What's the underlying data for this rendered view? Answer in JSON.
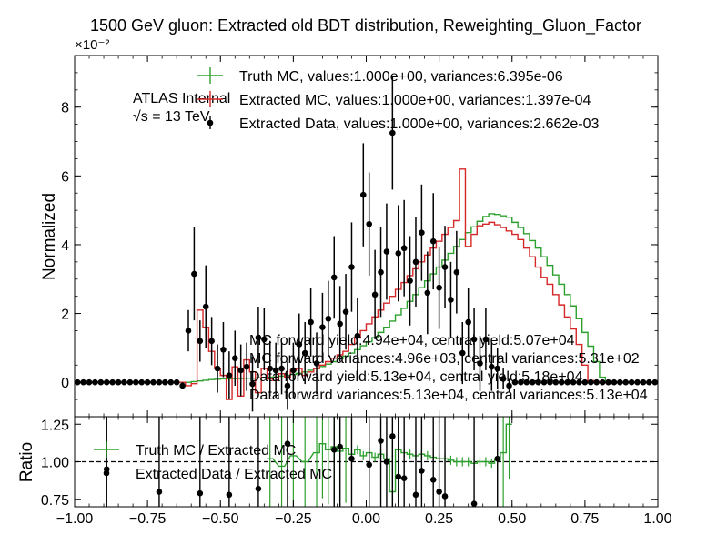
{
  "chart_data": {
    "type": "line",
    "title": "1500 GeV gluon: Extracted old BDT distribution, Reweighting_Gluon_Factor",
    "multiplier": "×10⁻²",
    "experiment": {
      "label": "ATLAS Internal",
      "energy": "√s = 13 TeV"
    },
    "xlim": [
      -1.0,
      1.0
    ],
    "xticks": [
      "−1.00",
      "−0.75",
      "−0.50",
      "−0.25",
      "0.00",
      "0.25",
      "0.50",
      "0.75",
      "1.00"
    ],
    "main": {
      "ylabel": "Normalized",
      "ylim": [
        -0.01,
        0.095
      ],
      "yticks": [
        {
          "value": 0,
          "label": "0"
        },
        {
          "value": 0.02,
          "label": "2"
        },
        {
          "value": 0.04,
          "label": "4"
        },
        {
          "value": 0.06,
          "label": "6"
        },
        {
          "value": 0.08,
          "label": "8"
        }
      ],
      "legend": [
        {
          "label": "Truth MC, values:1.000e+00, variances:6.395e-06",
          "color": "#2ca02c",
          "style": "errorbar-line"
        },
        {
          "label": "Extracted MC, values:1.000e+00, variances:1.397e-04",
          "color": "#d62728",
          "style": "errorbar-line"
        },
        {
          "label": "Extracted Data, values:1.000e+00, variances:2.662e-03",
          "color": "#000000",
          "style": "point"
        }
      ],
      "annotations": [
        "MC forward yield:4.94e+04, central yield:5.07e+04",
        "MC forward variances:4.96e+03, central variances:5.31e+02",
        "Data forward yield:5.13e+04, central yield:5.18e+04",
        "Data forward variances:5.13e+04, central variances:5.13e+04"
      ],
      "bin_edges_start": -1.0,
      "bin_width": 0.02,
      "truth_mc": [
        0,
        0,
        0,
        0,
        0,
        0,
        0,
        0,
        0,
        0,
        0,
        0,
        0,
        0,
        0,
        0,
        0,
        0,
        0,
        0,
        0.0002,
        0.0004,
        0.0006,
        0.0008,
        0.0009,
        0.001,
        0.001,
        0.0011,
        0.0011,
        0.0012,
        0.0012,
        0.0013,
        0.0014,
        0.0015,
        0.0016,
        0.0018,
        0.002,
        0.0023,
        0.0026,
        0.003,
        0.0035,
        0.004,
        0.0046,
        0.0053,
        0.006,
        0.0068,
        0.0076,
        0.0085,
        0.0095,
        0.0106,
        0.0118,
        0.013,
        0.0145,
        0.016,
        0.0178,
        0.0196,
        0.0215,
        0.0235,
        0.0255,
        0.0275,
        0.0295,
        0.0315,
        0.0335,
        0.0355,
        0.0375,
        0.0395,
        0.0415,
        0.0435,
        0.0452,
        0.0468,
        0.0482,
        0.049,
        0.0488,
        0.0484,
        0.048,
        0.0465,
        0.045,
        0.0432,
        0.0412,
        0.039,
        0.0365,
        0.034,
        0.0312,
        0.0285,
        0.0255,
        0.0222,
        0.0185,
        0.0145,
        0.0105,
        0.006,
        0.0015,
        0,
        0,
        0,
        0,
        0,
        0,
        0,
        0,
        0
      ],
      "extracted_mc": [
        0,
        0,
        0,
        0,
        0,
        0,
        0,
        0,
        0,
        0,
        0,
        0,
        0,
        0,
        0,
        0,
        0,
        0,
        0,
        -0.001,
        -0.0004,
        0.021,
        0.016,
        0.009,
        0.004,
        0.002,
        -0.005,
        0.0045,
        -0.004,
        0.0065,
        0.003,
        -0.003,
        0.004,
        0.001,
        0.0005,
        0.0025,
        0.0015,
        0.0035,
        0.004,
        0.002,
        0.003,
        0.004,
        0.005,
        0.006,
        0.007,
        0.008,
        0.009,
        0.011,
        0.013,
        0.015,
        0.017,
        0.019,
        0.021,
        0.023,
        0.025,
        0.027,
        0.029,
        0.031,
        0.033,
        0.035,
        0.037,
        0.039,
        0.041,
        0.043,
        0.045,
        0.047,
        0.062,
        0.0395,
        0.043,
        0.0455,
        0.046,
        0.0465,
        0.0458,
        0.045,
        0.044,
        0.043,
        0.0415,
        0.039,
        0.0365,
        0.0335,
        0.0305,
        0.0285,
        0.0255,
        0.0225,
        0.019,
        0.0155,
        0.011,
        0.005,
        0.0005,
        0,
        0,
        0,
        0,
        0,
        0,
        0,
        0,
        0,
        0,
        0
      ],
      "data_points": [
        {
          "x": -0.99,
          "y": 0,
          "err": 0.0005
        },
        {
          "x": -0.97,
          "y": 0,
          "err": 0.0005
        },
        {
          "x": -0.95,
          "y": 0,
          "err": 0.0005
        },
        {
          "x": -0.93,
          "y": 0,
          "err": 0.0005
        },
        {
          "x": -0.91,
          "y": 0,
          "err": 0.0005
        },
        {
          "x": -0.89,
          "y": 0,
          "err": 0.0005
        },
        {
          "x": -0.87,
          "y": 0,
          "err": 0.0005
        },
        {
          "x": -0.85,
          "y": 0,
          "err": 0.0005
        },
        {
          "x": -0.83,
          "y": 0,
          "err": 0.0005
        },
        {
          "x": -0.81,
          "y": 0,
          "err": 0.0005
        },
        {
          "x": -0.79,
          "y": 0,
          "err": 0.0005
        },
        {
          "x": -0.77,
          "y": 0,
          "err": 0.0005
        },
        {
          "x": -0.75,
          "y": 0,
          "err": 0.0005
        },
        {
          "x": -0.73,
          "y": 0,
          "err": 0.0005
        },
        {
          "x": -0.71,
          "y": 0,
          "err": 0.0005
        },
        {
          "x": -0.69,
          "y": 0,
          "err": 0.0005
        },
        {
          "x": -0.67,
          "y": 0,
          "err": 0.0005
        },
        {
          "x": -0.65,
          "y": 0,
          "err": 0.0005
        },
        {
          "x": -0.63,
          "y": -0.001,
          "err": 0.001
        },
        {
          "x": -0.61,
          "y": 0.015,
          "err": 0.006
        },
        {
          "x": -0.59,
          "y": 0.0315,
          "err": 0.0135
        },
        {
          "x": -0.57,
          "y": 0.012,
          "err": 0.006
        },
        {
          "x": -0.55,
          "y": 0.022,
          "err": 0.012
        },
        {
          "x": -0.53,
          "y": 0.012,
          "err": 0.007
        },
        {
          "x": -0.51,
          "y": 0.004,
          "err": 0.007
        },
        {
          "x": -0.49,
          "y": 0.0095,
          "err": 0.008
        },
        {
          "x": -0.47,
          "y": 0.002,
          "err": 0.007
        },
        {
          "x": -0.45,
          "y": 0.007,
          "err": 0.008
        },
        {
          "x": -0.43,
          "y": 0.0035,
          "err": 0.0075
        },
        {
          "x": -0.41,
          "y": 0.0045,
          "err": 0.007
        },
        {
          "x": -0.39,
          "y": -0.0005,
          "err": 0.008
        },
        {
          "x": -0.37,
          "y": 0.013,
          "err": 0.009
        },
        {
          "x": -0.35,
          "y": 0.0125,
          "err": 0.009
        },
        {
          "x": -0.33,
          "y": 0.004,
          "err": 0.008
        },
        {
          "x": -0.31,
          "y": 0.0035,
          "err": 0.008
        },
        {
          "x": -0.29,
          "y": 0.004,
          "err": 0.0075
        },
        {
          "x": -0.27,
          "y": -0.001,
          "err": 0.007
        },
        {
          "x": -0.25,
          "y": 0.0035,
          "err": 0.008
        },
        {
          "x": -0.23,
          "y": 0.011,
          "err": 0.009
        },
        {
          "x": -0.21,
          "y": 0.0085,
          "err": 0.009
        },
        {
          "x": -0.19,
          "y": 0.0175,
          "err": 0.01
        },
        {
          "x": -0.17,
          "y": 0.0055,
          "err": 0.009
        },
        {
          "x": -0.15,
          "y": 0.016,
          "err": 0.01
        },
        {
          "x": -0.13,
          "y": 0.0185,
          "err": 0.011
        },
        {
          "x": -0.11,
          "y": 0.0305,
          "err": 0.012
        },
        {
          "x": -0.09,
          "y": 0.017,
          "err": 0.011
        },
        {
          "x": -0.07,
          "y": 0.0205,
          "err": 0.011
        },
        {
          "x": -0.05,
          "y": 0.0335,
          "err": 0.013
        },
        {
          "x": -0.03,
          "y": 0.0135,
          "err": 0.011
        },
        {
          "x": -0.01,
          "y": 0.0545,
          "err": 0.015
        },
        {
          "x": 0.01,
          "y": 0.046,
          "err": 0.015
        },
        {
          "x": 0.03,
          "y": 0.0255,
          "err": 0.013
        },
        {
          "x": 0.05,
          "y": 0.032,
          "err": 0.013
        },
        {
          "x": 0.07,
          "y": 0.038,
          "err": 0.014
        },
        {
          "x": 0.09,
          "y": 0.0725,
          "err": 0.0165
        },
        {
          "x": 0.11,
          "y": 0.0375,
          "err": 0.014
        },
        {
          "x": 0.13,
          "y": 0.039,
          "err": 0.014
        },
        {
          "x": 0.15,
          "y": 0.0295,
          "err": 0.013
        },
        {
          "x": 0.17,
          "y": 0.035,
          "err": 0.013
        },
        {
          "x": 0.19,
          "y": 0.0435,
          "err": 0.014
        },
        {
          "x": 0.21,
          "y": 0.026,
          "err": 0.012
        },
        {
          "x": 0.23,
          "y": 0.041,
          "err": 0.014
        },
        {
          "x": 0.25,
          "y": 0.0275,
          "err": 0.012
        },
        {
          "x": 0.27,
          "y": 0.0335,
          "err": 0.012
        },
        {
          "x": 0.29,
          "y": 0.024,
          "err": 0.011
        },
        {
          "x": 0.31,
          "y": 0.032,
          "err": 0.012
        },
        {
          "x": 0.33,
          "y": 0.0085,
          "err": 0.009
        },
        {
          "x": 0.35,
          "y": 0.0175,
          "err": 0.01
        },
        {
          "x": 0.37,
          "y": 0.0125,
          "err": 0.009
        },
        {
          "x": 0.39,
          "y": 0.0055,
          "err": 0.008
        },
        {
          "x": 0.41,
          "y": 0.0125,
          "err": 0.009
        },
        {
          "x": 0.43,
          "y": 0.0045,
          "err": 0.007
        },
        {
          "x": 0.45,
          "y": 0.004,
          "err": 0.006
        },
        {
          "x": 0.47,
          "y": 0.001,
          "err": 0.003
        },
        {
          "x": 0.49,
          "y": -0.001,
          "err": 0.002
        },
        {
          "x": 0.51,
          "y": 0,
          "err": 0.0005
        },
        {
          "x": 0.53,
          "y": 0,
          "err": 0.0005
        },
        {
          "x": 0.55,
          "y": 0,
          "err": 0.0005
        },
        {
          "x": 0.57,
          "y": 0,
          "err": 0.0005
        },
        {
          "x": 0.59,
          "y": 0,
          "err": 0.0005
        },
        {
          "x": 0.61,
          "y": 0,
          "err": 0.0005
        },
        {
          "x": 0.63,
          "y": 0,
          "err": 0.0005
        },
        {
          "x": 0.65,
          "y": 0,
          "err": 0.0005
        },
        {
          "x": 0.67,
          "y": 0,
          "err": 0.0005
        },
        {
          "x": 0.69,
          "y": 0,
          "err": 0.0005
        },
        {
          "x": 0.71,
          "y": 0,
          "err": 0.0005
        },
        {
          "x": 0.73,
          "y": 0,
          "err": 0.0005
        },
        {
          "x": 0.75,
          "y": 0,
          "err": 0.0005
        },
        {
          "x": 0.77,
          "y": 0,
          "err": 0.0005
        },
        {
          "x": 0.79,
          "y": 0,
          "err": 0.0005
        },
        {
          "x": 0.81,
          "y": 0,
          "err": 0.0005
        },
        {
          "x": 0.83,
          "y": 0,
          "err": 0.0005
        },
        {
          "x": 0.85,
          "y": 0,
          "err": 0.0005
        },
        {
          "x": 0.87,
          "y": 0,
          "err": 0.0005
        },
        {
          "x": 0.89,
          "y": 0,
          "err": 0.0005
        },
        {
          "x": 0.91,
          "y": 0,
          "err": 0.0005
        },
        {
          "x": 0.93,
          "y": 0,
          "err": 0.0005
        },
        {
          "x": 0.95,
          "y": 0,
          "err": 0.0005
        },
        {
          "x": 0.97,
          "y": 0,
          "err": 0.0005
        },
        {
          "x": 0.99,
          "y": 0,
          "err": 0.0005
        }
      ]
    },
    "ratio": {
      "ylabel": "Ratio",
      "ylim": [
        0.7,
        1.3
      ],
      "yticks": [
        {
          "value": 0.75,
          "label": "0.75"
        },
        {
          "value": 1.0,
          "label": "1.00"
        },
        {
          "value": 1.25,
          "label": "1.25"
        }
      ],
      "reference": 1.0,
      "legend": [
        {
          "label": "Truth MC / Extracted MC",
          "color": "#2ca02c",
          "style": "errorbar-line"
        },
        {
          "label": "Extracted Data / Extracted MC",
          "color": "#000000",
          "style": "point"
        }
      ],
      "truth_over_mc": [
        {
          "x": -0.33,
          "y": 1.02
        },
        {
          "x": -0.29,
          "y": 0.97
        },
        {
          "x": -0.25,
          "y": 1.04
        },
        {
          "x": -0.21,
          "y": 1.0
        },
        {
          "x": -0.17,
          "y": 1.06
        },
        {
          "x": -0.15,
          "y": 1.12
        },
        {
          "x": -0.13,
          "y": 1.08
        },
        {
          "x": -0.11,
          "y": 1.1
        },
        {
          "x": -0.09,
          "y": 1.07
        },
        {
          "x": -0.07,
          "y": 1.09
        },
        {
          "x": -0.05,
          "y": 1.05
        },
        {
          "x": -0.03,
          "y": 1.08
        },
        {
          "x": -0.01,
          "y": 1.04
        },
        {
          "x": 0.01,
          "y": 1.06
        },
        {
          "x": 0.03,
          "y": 1.03
        },
        {
          "x": 0.05,
          "y": 1.05
        },
        {
          "x": 0.07,
          "y": 1.02
        },
        {
          "x": 0.09,
          "y": 0.8
        },
        {
          "x": 0.11,
          "y": 1.08
        },
        {
          "x": 0.13,
          "y": 1.06
        },
        {
          "x": 0.15,
          "y": 1.05
        },
        {
          "x": 0.17,
          "y": 1.04
        },
        {
          "x": 0.19,
          "y": 1.05
        },
        {
          "x": 0.21,
          "y": 1.04
        },
        {
          "x": 0.23,
          "y": 1.03
        },
        {
          "x": 0.25,
          "y": 1.02
        },
        {
          "x": 0.27,
          "y": 1.02
        },
        {
          "x": 0.29,
          "y": 1.01
        },
        {
          "x": 0.31,
          "y": 1.0
        },
        {
          "x": 0.33,
          "y": 1.0
        },
        {
          "x": 0.35,
          "y": 1.0
        },
        {
          "x": 0.37,
          "y": 0.99
        },
        {
          "x": 0.39,
          "y": 1.0
        },
        {
          "x": 0.41,
          "y": 1.0
        },
        {
          "x": 0.43,
          "y": 0.99
        },
        {
          "x": 0.45,
          "y": 1.01
        },
        {
          "x": 0.47,
          "y": 1.06
        },
        {
          "x": 0.49,
          "y": 1.25
        }
      ],
      "data_over_mc": [
        {
          "x": -0.89,
          "y": 0.95
        },
        {
          "x": -0.71,
          "y": 0.8
        },
        {
          "x": -0.57,
          "y": 0.79
        },
        {
          "x": -0.47,
          "y": 0.78
        },
        {
          "x": -0.37,
          "y": 0.82
        },
        {
          "x": -0.27,
          "y": 1.12
        },
        {
          "x": -0.11,
          "y": 1.08
        },
        {
          "x": -0.09,
          "y": 1.1
        },
        {
          "x": -0.05,
          "y": 1.02
        },
        {
          "x": 0.01,
          "y": 0.98
        },
        {
          "x": 0.05,
          "y": 1.14
        },
        {
          "x": 0.07,
          "y": 1.0
        },
        {
          "x": 0.09,
          "y": 1.17
        },
        {
          "x": 0.11,
          "y": 0.9
        },
        {
          "x": 0.13,
          "y": 0.89
        },
        {
          "x": 0.17,
          "y": 0.78
        },
        {
          "x": 0.19,
          "y": 0.94
        },
        {
          "x": 0.23,
          "y": 0.88
        },
        {
          "x": 0.25,
          "y": 0.8
        },
        {
          "x": 0.27,
          "y": 0.77
        },
        {
          "x": 0.37,
          "y": 0.72
        },
        {
          "x": 0.45,
          "y": 1.02
        }
      ]
    }
  }
}
